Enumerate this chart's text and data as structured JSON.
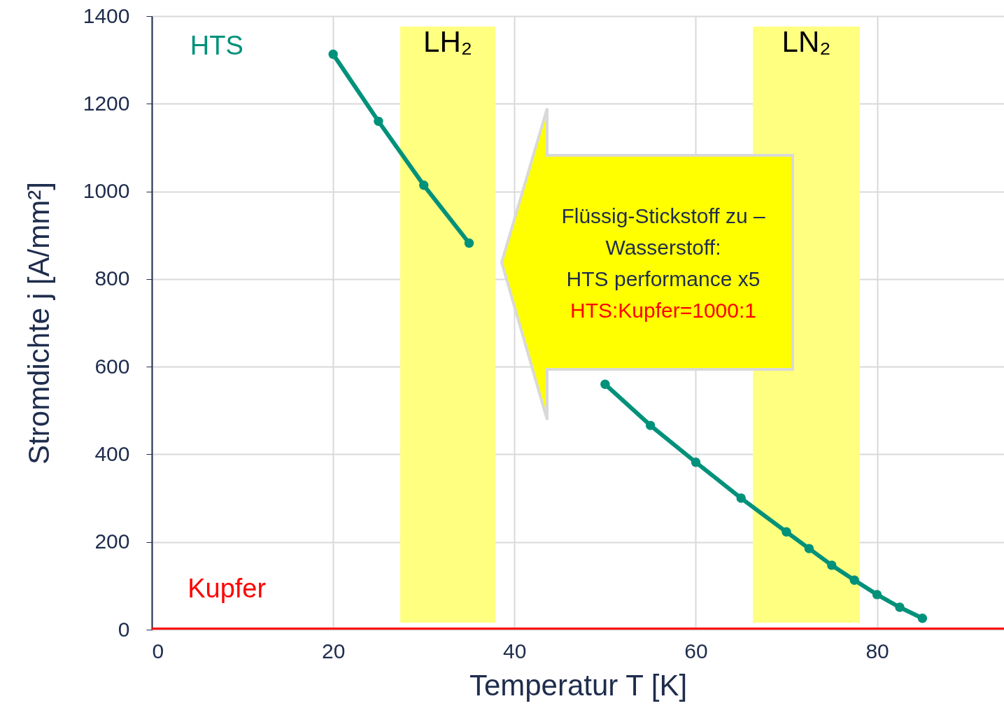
{
  "chart_data": {
    "type": "line",
    "xlabel": "Temperatur T [K]",
    "ylabel": "Stromdichte j [A/mm²]",
    "xlim": [
      0,
      94
    ],
    "ylim": [
      0,
      1400
    ],
    "xticks": [
      0,
      20,
      40,
      60,
      80
    ],
    "yticks": [
      0,
      200,
      400,
      600,
      800,
      1000,
      1200,
      1400
    ],
    "grid": true,
    "series": [
      {
        "name": "HTS",
        "color": "#00917a",
        "marker": "circle",
        "x": [
          20,
          25,
          30,
          35,
          40,
          45,
          50,
          55,
          60,
          65,
          70,
          72.5,
          75,
          77.5,
          80,
          82.5,
          85
        ],
        "values": [
          1313,
          1160,
          1014,
          882,
          null,
          null,
          560,
          466,
          382,
          300,
          223,
          185,
          147,
          113,
          80,
          51,
          26
        ]
      },
      {
        "name": "Kupfer",
        "color": "#ff0000",
        "marker": "none",
        "x": [
          0,
          94
        ],
        "values": [
          0,
          0
        ]
      }
    ],
    "bands": [
      {
        "axis": "x",
        "from": 27.4,
        "to": 37.9,
        "label": "LH₂",
        "color": "#ffff80"
      },
      {
        "axis": "x",
        "from": 66.3,
        "to": 78.1,
        "label": "LN₂",
        "color": "#ffff80"
      }
    ],
    "annotations": [
      "Flüssig-Stickstoff zu –",
      "Wasserstoff:",
      "HTS performance x5",
      "HTS:Kupfer=1000:1"
    ]
  }
}
